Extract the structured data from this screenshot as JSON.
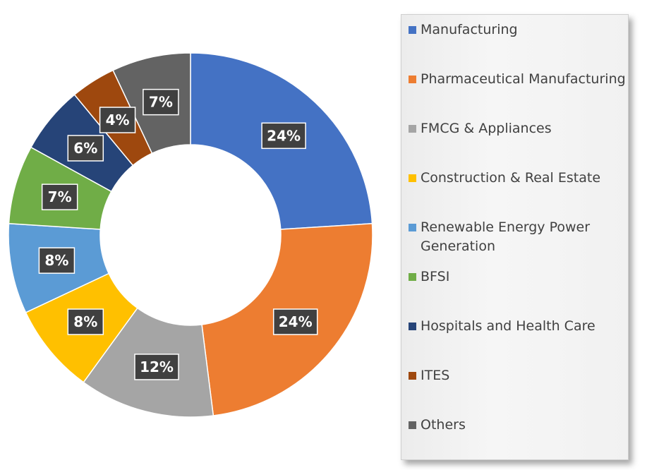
{
  "chart_data": {
    "type": "pie",
    "style": "donut",
    "title": "",
    "series": [
      {
        "name": "Manufacturing",
        "value": 24,
        "label": "24%",
        "color": "#4472C4"
      },
      {
        "name": "Pharmaceutical Manufacturing",
        "value": 24,
        "label": "24%",
        "color": "#ED7D31"
      },
      {
        "name": "FMCG & Appliances",
        "value": 12,
        "label": "12%",
        "color": "#A5A5A5"
      },
      {
        "name": "Construction & Real Estate",
        "value": 8,
        "label": "8%",
        "color": "#FFC000"
      },
      {
        "name": "Renewable Energy Power Generation",
        "value": 8,
        "label": "8%",
        "color": "#5B9BD5"
      },
      {
        "name": "BFSI",
        "value": 7,
        "label": "7%",
        "color": "#70AD47"
      },
      {
        "name": "Hospitals and Health Care",
        "value": 6,
        "label": "6%",
        "color": "#264478"
      },
      {
        "name": "ITES",
        "value": 4,
        "label": "4%",
        "color": "#9E480E"
      },
      {
        "name": "Others",
        "value": 7,
        "label": "7%",
        "color": "#636363"
      }
    ],
    "legend_position": "right"
  }
}
